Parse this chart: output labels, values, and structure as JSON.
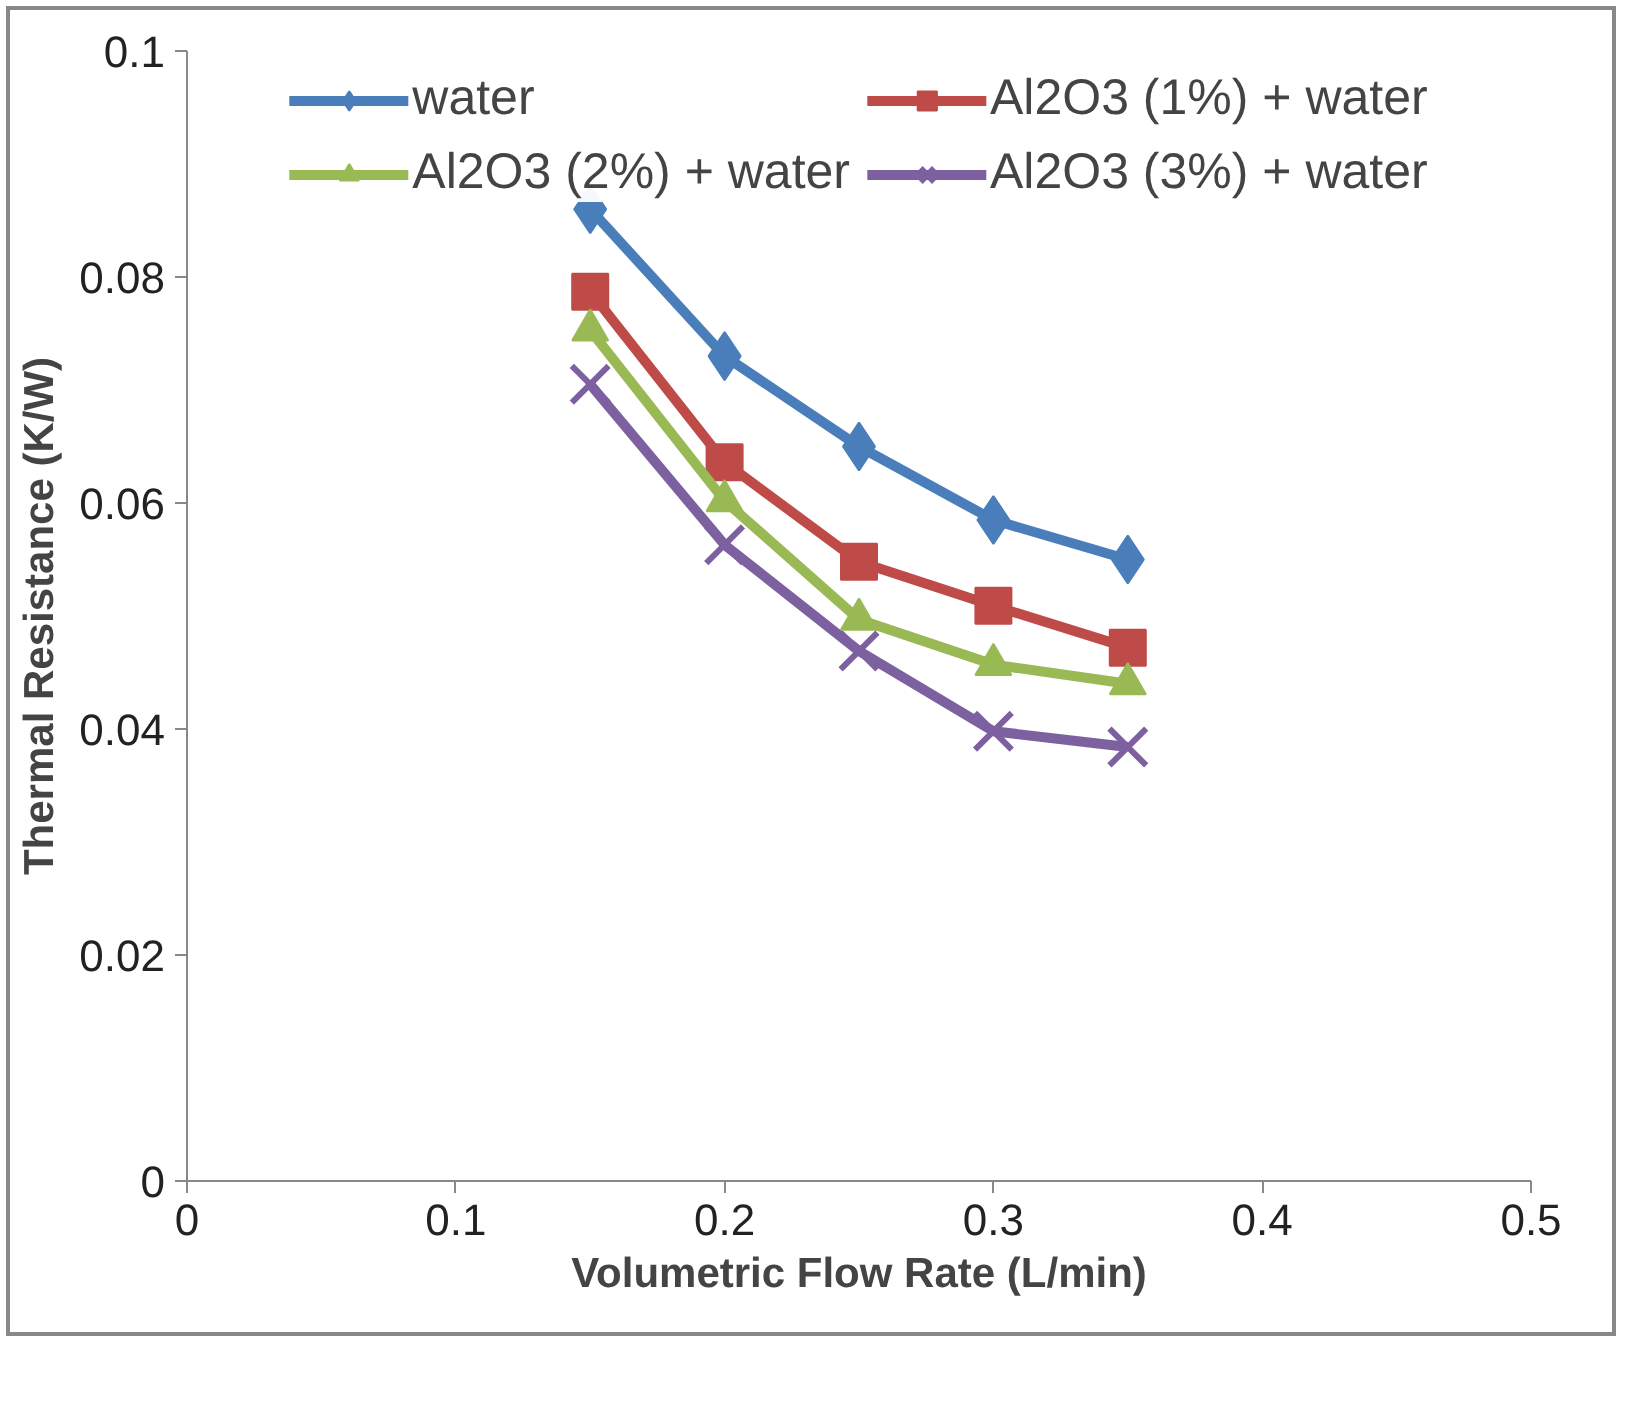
{
  "chart_data": {
    "type": "line",
    "xlabel": "Volumetric Flow Rate (L/min)",
    "ylabel": "Thermal Resistance (K/W)",
    "x": [
      0.15,
      0.2,
      0.25,
      0.3,
      0.35
    ],
    "series": [
      {
        "name": "water",
        "color": "#4a7ebb",
        "marker": "diamond",
        "values": [
          0.086,
          0.073,
          0.065,
          0.0585,
          0.055
        ]
      },
      {
        "name": "Al2O3 (1%) + water",
        "color": "#be4b48",
        "marker": "square",
        "values": [
          0.0787,
          0.0636,
          0.0548,
          0.0509,
          0.0472
        ]
      },
      {
        "name": "Al2O3 (2%) + water",
        "color": "#98b954",
        "marker": "triangle",
        "values": [
          0.0753,
          0.0602,
          0.0497,
          0.0457,
          0.044
        ]
      },
      {
        "name": "Al2O3 (3%) + water",
        "color": "#7d60a0",
        "marker": "cross",
        "values": [
          0.0705,
          0.0563,
          0.0469,
          0.0398,
          0.0384
        ]
      }
    ],
    "xlim": [
      0,
      0.5
    ],
    "xticks": [
      0,
      0.1,
      0.2,
      0.3,
      0.4,
      0.5
    ],
    "ylim": [
      0,
      0.1
    ],
    "yticks": [
      0,
      0.02,
      0.04,
      0.06,
      0.08,
      0.1
    ],
    "grid": false,
    "legend": "top",
    "line_style": "solid"
  }
}
